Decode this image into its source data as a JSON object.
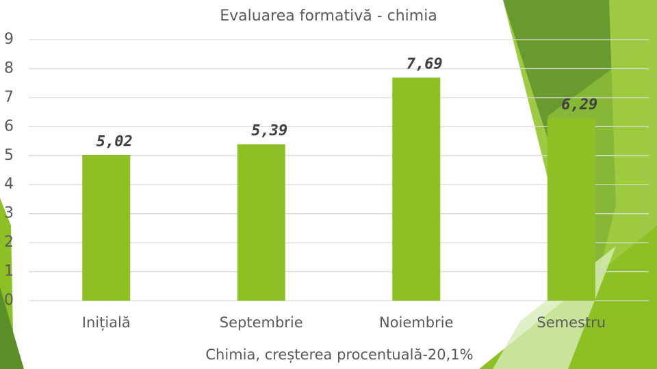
{
  "chart_data": {
    "type": "bar",
    "title": "Evaluarea formativă - chimia",
    "x_label": "Chimia, creșterea procentuală-20,1%",
    "categories": [
      "Inițială",
      "Septembrie",
      "Noiembrie",
      "Semestru"
    ],
    "values": [
      5.02,
      5.39,
      7.69,
      6.29
    ],
    "value_labels": [
      "5,02",
      "5,39",
      "7,69",
      "6,29"
    ],
    "color": "#8dc025",
    "ylim": [
      0,
      9
    ],
    "yticks": [
      0,
      1,
      2,
      3,
      4,
      5,
      6,
      7,
      8,
      9
    ],
    "grid": true
  }
}
